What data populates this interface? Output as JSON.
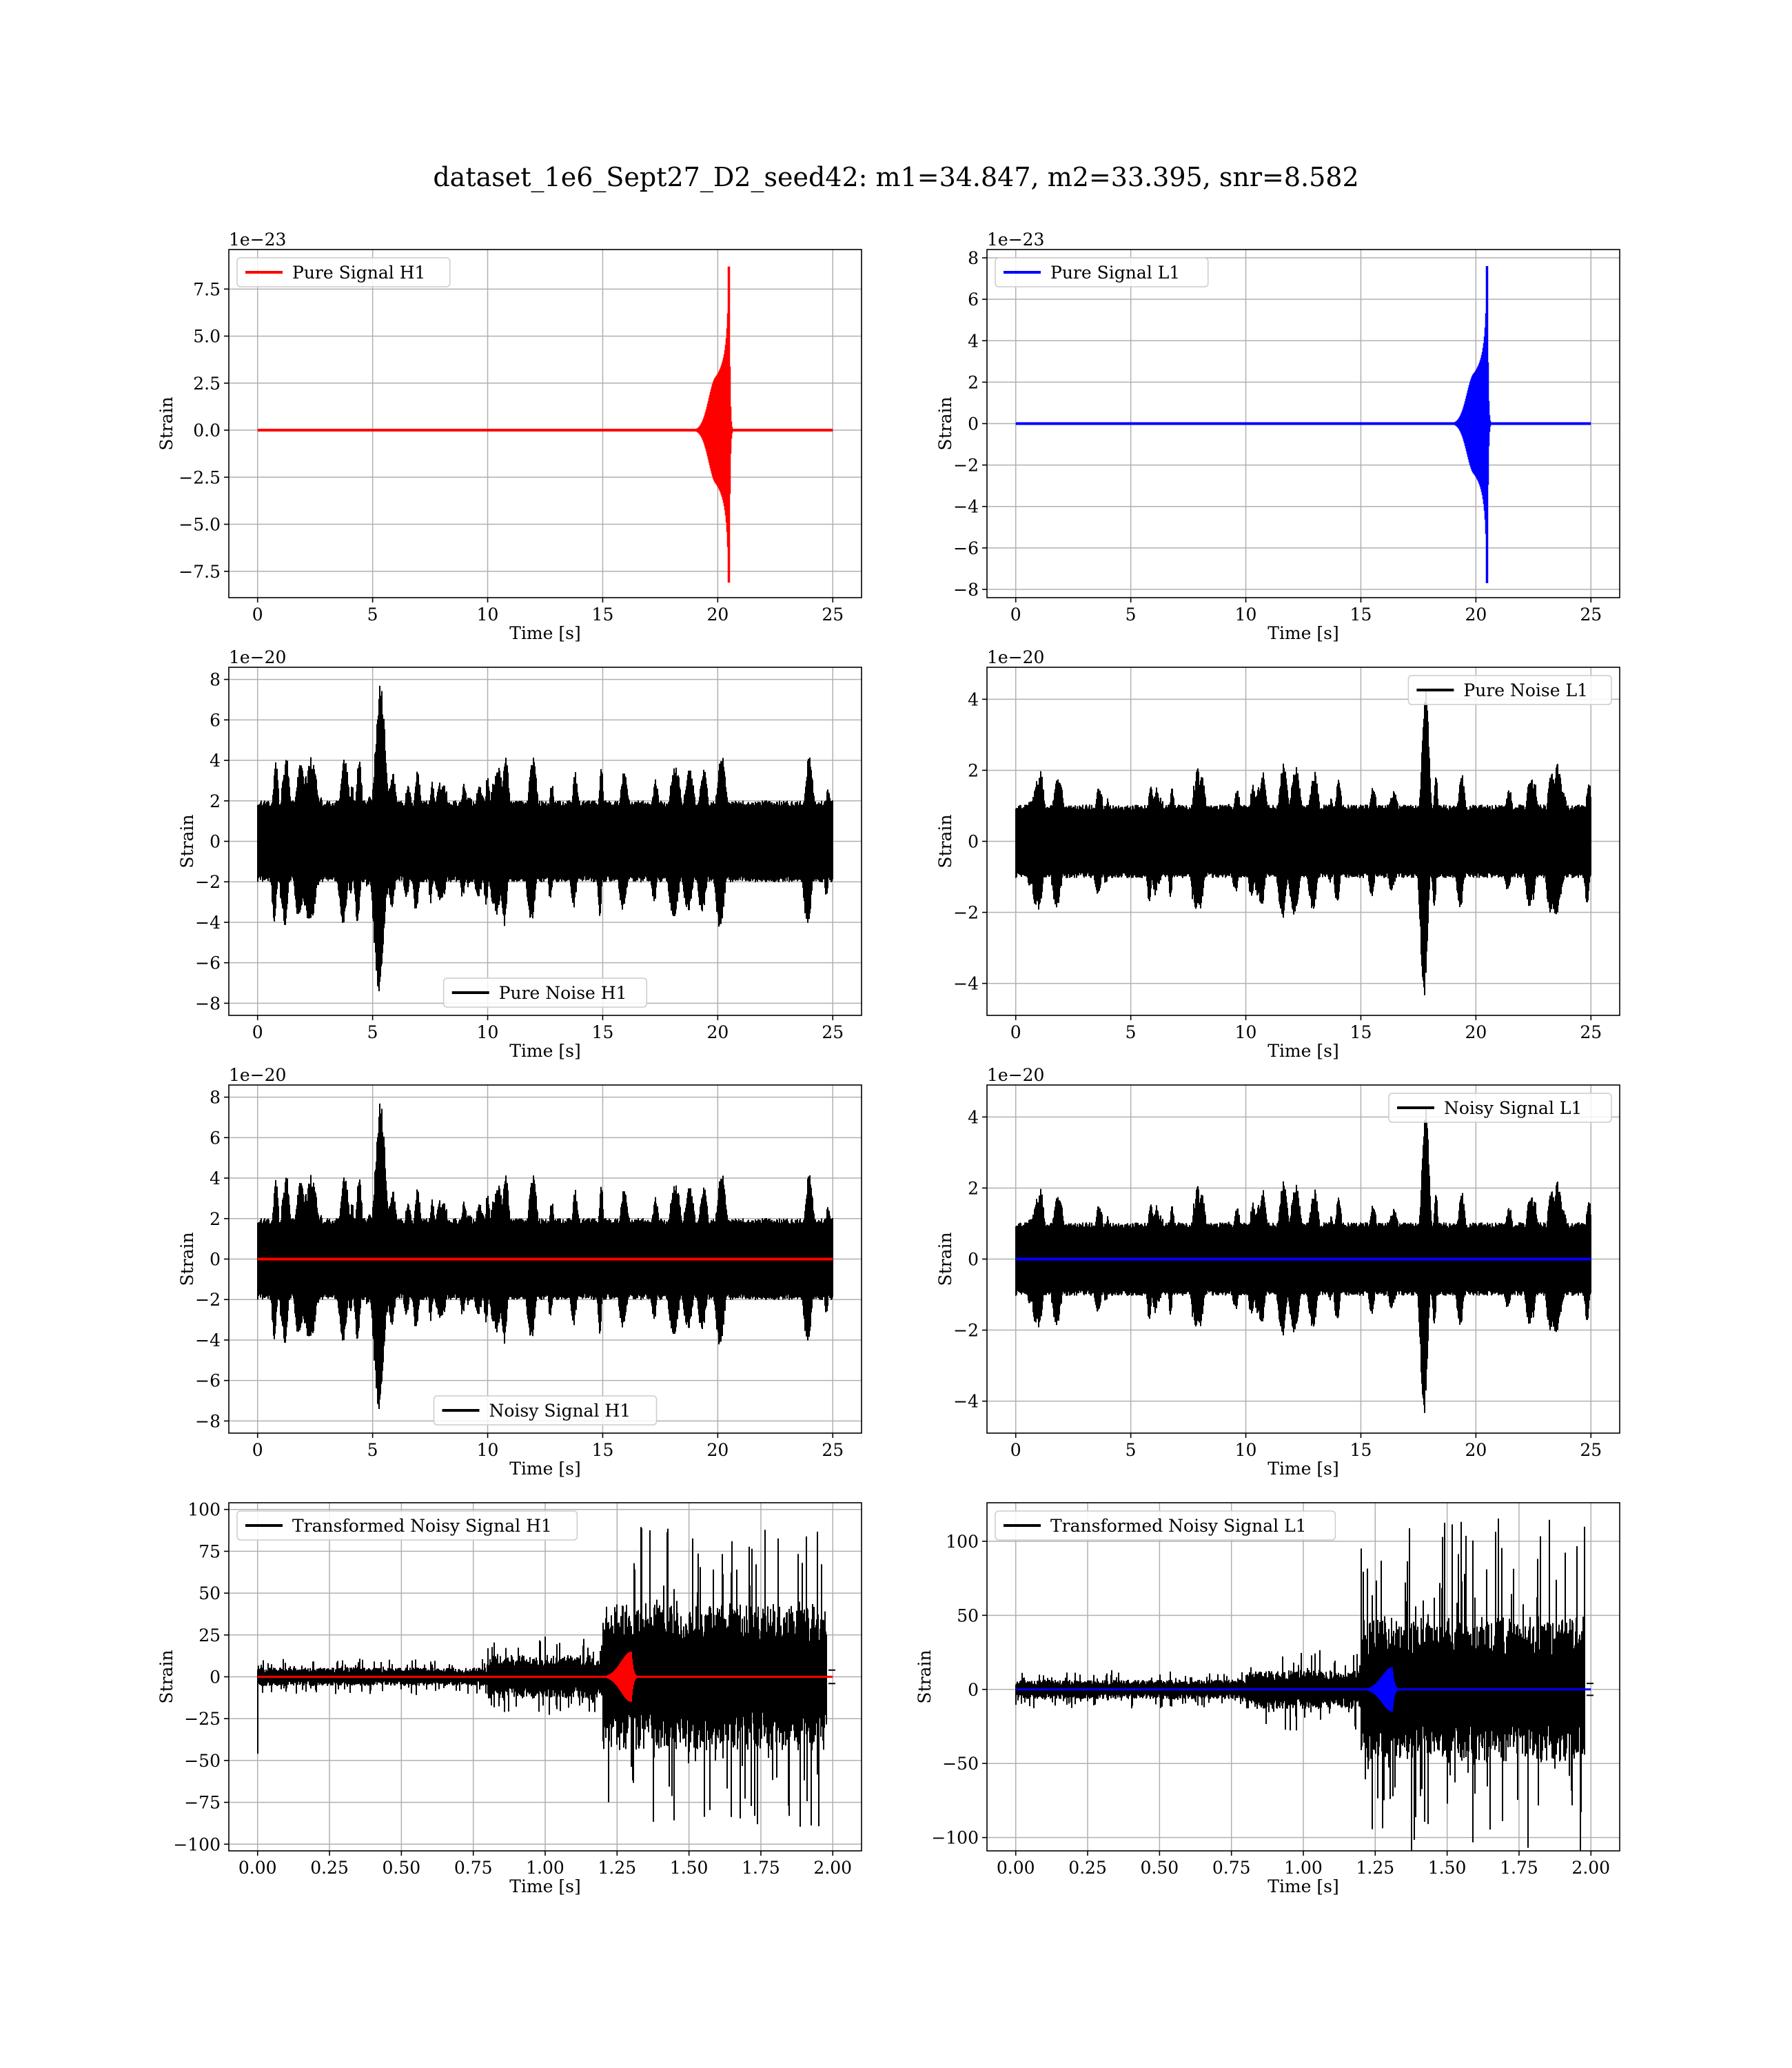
{
  "suptitle": "dataset_1e6_Sept27_D2_seed42: m1=34.847, m2=33.395, snr=8.582",
  "colors": {
    "h1_signal": "#ff0000",
    "l1_signal": "#0000ff",
    "noise": "#000000",
    "grid": "#b0b0b0"
  },
  "chart_data": [
    {
      "id": "pure-signal-h1",
      "type": "line",
      "kind": "chirp",
      "xlabel": "Time [s]",
      "ylabel": "Strain",
      "offset_text": "1e−23",
      "xlim": [
        -1.25,
        26.25
      ],
      "ylim": [
        -8.9,
        9.6
      ],
      "xticks": [
        0,
        5,
        10,
        15,
        20,
        25
      ],
      "xtick_labels": [
        "0",
        "5",
        "10",
        "15",
        "20",
        "25"
      ],
      "yticks": [
        -7.5,
        -5.0,
        -2.5,
        0.0,
        2.5,
        5.0,
        7.5
      ],
      "ytick_labels": [
        "−7.5",
        "−5.0",
        "−2.5",
        "0.0",
        "2.5",
        "5.0",
        "7.5"
      ],
      "legend": {
        "loc": "upper left",
        "entries": [
          {
            "label": "Pure Signal H1",
            "color": "#ff0000"
          }
        ]
      },
      "series": [
        {
          "name": "Pure Signal H1",
          "color": "#ff0000",
          "x_range": [
            0,
            25
          ],
          "merger_time": 20.5,
          "peak": [
            8.7,
            -8.1
          ],
          "plateau": [
            2.8,
            -2.8
          ]
        }
      ]
    },
    {
      "id": "pure-signal-l1",
      "type": "line",
      "kind": "chirp",
      "xlabel": "Time [s]",
      "ylabel": "Strain",
      "offset_text": "1e−23",
      "xlim": [
        -1.25,
        26.25
      ],
      "ylim": [
        -8.4,
        8.4
      ],
      "xticks": [
        0,
        5,
        10,
        15,
        20,
        25
      ],
      "xtick_labels": [
        "0",
        "5",
        "10",
        "15",
        "20",
        "25"
      ],
      "yticks": [
        -8,
        -6,
        -4,
        -2,
        0,
        2,
        4,
        6,
        8
      ],
      "ytick_labels": [
        "−8",
        "−6",
        "−4",
        "−2",
        "0",
        "2",
        "4",
        "6",
        "8"
      ],
      "legend": {
        "loc": "upper left",
        "entries": [
          {
            "label": "Pure Signal L1",
            "color": "#0000ff"
          }
        ]
      },
      "series": [
        {
          "name": "Pure Signal L1",
          "color": "#0000ff",
          "x_range": [
            0,
            25
          ],
          "merger_time": 20.5,
          "peak": [
            7.6,
            -7.7
          ],
          "plateau": [
            2.4,
            -2.4
          ]
        }
      ]
    },
    {
      "id": "pure-noise-h1",
      "type": "line",
      "kind": "noise",
      "xlabel": "Time [s]",
      "ylabel": "Strain",
      "offset_text": "1e−20",
      "xlim": [
        -1.25,
        26.25
      ],
      "ylim": [
        -8.6,
        8.6
      ],
      "xticks": [
        0,
        5,
        10,
        15,
        20,
        25
      ],
      "xtick_labels": [
        "0",
        "5",
        "10",
        "15",
        "20",
        "25"
      ],
      "yticks": [
        -8,
        -6,
        -4,
        -2,
        0,
        2,
        4,
        6,
        8
      ],
      "ytick_labels": [
        "−8",
        "−6",
        "−4",
        "−2",
        "0",
        "2",
        "4",
        "6",
        "8"
      ],
      "legend": {
        "loc": "lower center",
        "entries": [
          {
            "label": "Pure Noise H1",
            "color": "#000000"
          }
        ]
      },
      "series": [
        {
          "name": "Pure Noise H1",
          "color": "#000000",
          "x_range": [
            0,
            25
          ],
          "max_abs": 7.8,
          "typical_abs": 4.5,
          "seed": 11
        }
      ]
    },
    {
      "id": "pure-noise-l1",
      "type": "line",
      "kind": "noise",
      "xlabel": "Time [s]",
      "ylabel": "Strain",
      "offset_text": "1e−20",
      "xlim": [
        -1.25,
        26.25
      ],
      "ylim": [
        -4.9,
        4.9
      ],
      "xticks": [
        0,
        5,
        10,
        15,
        20,
        25
      ],
      "xtick_labels": [
        "0",
        "5",
        "10",
        "15",
        "20",
        "25"
      ],
      "yticks": [
        -4,
        -2,
        0,
        2,
        4
      ],
      "ytick_labels": [
        "−4",
        "−2",
        "0",
        "2",
        "4"
      ],
      "legend": {
        "loc": "upper right",
        "entries": [
          {
            "label": "Pure Noise L1",
            "color": "#000000"
          }
        ]
      },
      "series": [
        {
          "name": "Pure Noise L1",
          "color": "#000000",
          "x_range": [
            0,
            25
          ],
          "max_abs": 4.4,
          "typical_abs": 2.3,
          "seed": 23
        }
      ]
    },
    {
      "id": "noisy-signal-h1",
      "type": "line",
      "kind": "noise-with-signal",
      "xlabel": "Time [s]",
      "ylabel": "Strain",
      "offset_text": "1e−20",
      "xlim": [
        -1.25,
        26.25
      ],
      "ylim": [
        -8.6,
        8.6
      ],
      "xticks": [
        0,
        5,
        10,
        15,
        20,
        25
      ],
      "xtick_labels": [
        "0",
        "5",
        "10",
        "15",
        "20",
        "25"
      ],
      "yticks": [
        -8,
        -6,
        -4,
        -2,
        0,
        2,
        4,
        6,
        8
      ],
      "ytick_labels": [
        "−8",
        "−6",
        "−4",
        "−2",
        "0",
        "2",
        "4",
        "6",
        "8"
      ],
      "legend": {
        "loc": "lower center",
        "entries": [
          {
            "label": "Noisy Signal H1",
            "color": "#000000"
          }
        ]
      },
      "series": [
        {
          "name": "Noisy Signal H1",
          "color": "#000000",
          "x_range": [
            0,
            25
          ],
          "max_abs": 7.8,
          "typical_abs": 4.5,
          "seed": 11
        },
        {
          "color": "#ff0000",
          "x_range": [
            0,
            25
          ],
          "value": 0
        }
      ]
    },
    {
      "id": "noisy-signal-l1",
      "type": "line",
      "kind": "noise-with-signal",
      "xlabel": "Time [s]",
      "ylabel": "Strain",
      "offset_text": "1e−20",
      "xlim": [
        -1.25,
        26.25
      ],
      "ylim": [
        -4.9,
        4.9
      ],
      "xticks": [
        0,
        5,
        10,
        15,
        20,
        25
      ],
      "xtick_labels": [
        "0",
        "5",
        "10",
        "15",
        "20",
        "25"
      ],
      "yticks": [
        -4,
        -2,
        0,
        2,
        4
      ],
      "ytick_labels": [
        "−4",
        "−2",
        "0",
        "2",
        "4"
      ],
      "legend": {
        "loc": "upper right",
        "entries": [
          {
            "label": "Noisy Signal L1",
            "color": "#000000"
          }
        ]
      },
      "series": [
        {
          "name": "Noisy Signal L1",
          "color": "#000000",
          "x_range": [
            0,
            25
          ],
          "max_abs": 4.4,
          "typical_abs": 2.3,
          "seed": 23
        },
        {
          "color": "#0000ff",
          "x_range": [
            0,
            25
          ],
          "value": 0
        }
      ]
    },
    {
      "id": "transformed-noisy-signal-h1",
      "type": "line",
      "kind": "whitened",
      "xlabel": "Time [s]",
      "ylabel": "Strain",
      "offset_text": "",
      "xlim": [
        -0.1,
        2.1
      ],
      "ylim": [
        -104,
        104
      ],
      "xticks": [
        0,
        0.25,
        0.5,
        0.75,
        1.0,
        1.25,
        1.5,
        1.75,
        2.0
      ],
      "xtick_labels": [
        "0.00",
        "0.25",
        "0.50",
        "0.75",
        "1.00",
        "1.25",
        "1.50",
        "1.75",
        "2.00"
      ],
      "yticks": [
        -100,
        -75,
        -50,
        -25,
        0,
        25,
        50,
        75,
        100
      ],
      "ytick_labels": [
        "−100",
        "−75",
        "−50",
        "−25",
        "0",
        "25",
        "50",
        "75",
        "100"
      ],
      "legend": {
        "loc": "upper left",
        "entries": [
          {
            "label": "Transformed Noisy Signal H1",
            "color": "#000000"
          }
        ]
      },
      "series": [
        {
          "name": "Transformed Noisy Signal H1",
          "color": "#000000",
          "x_range": [
            0,
            2
          ],
          "segments": [
            [
              0.0,
              0.8,
              5,
              11
            ],
            [
              0.8,
              1.2,
              12,
              25
            ],
            [
              1.2,
              1.98,
              40,
              90
            ]
          ],
          "start_spike": -46,
          "seed": 37
        },
        {
          "color": "#ff0000",
          "x_range": [
            0,
            2
          ],
          "merger_time": 1.3,
          "peak": 15
        }
      ]
    },
    {
      "id": "transformed-noisy-signal-l1",
      "type": "line",
      "kind": "whitened",
      "xlabel": "Time [s]",
      "ylabel": "Strain",
      "offset_text": "",
      "xlim": [
        -0.1,
        2.1
      ],
      "ylim": [
        -109,
        126
      ],
      "xticks": [
        0,
        0.25,
        0.5,
        0.75,
        1.0,
        1.25,
        1.5,
        1.75,
        2.0
      ],
      "xtick_labels": [
        "0.00",
        "0.25",
        "0.50",
        "0.75",
        "1.00",
        "1.25",
        "1.50",
        "1.75",
        "2.00"
      ],
      "yticks": [
        -100,
        -50,
        0,
        50,
        100
      ],
      "ytick_labels": [
        "−100",
        "−50",
        "0",
        "50",
        "100"
      ],
      "legend": {
        "loc": "upper left",
        "entries": [
          {
            "label": "Transformed Noisy Signal L1",
            "color": "#000000"
          }
        ]
      },
      "series": [
        {
          "name": "Transformed Noisy Signal L1",
          "color": "#000000",
          "x_range": [
            0,
            2
          ],
          "segments": [
            [
              0.0,
              0.8,
              6,
              13
            ],
            [
              0.8,
              1.2,
              12,
              28
            ],
            [
              1.2,
              1.98,
              45,
              116
            ]
          ],
          "start_spike": 0,
          "seed": 53
        },
        {
          "color": "#0000ff",
          "x_range": [
            0,
            2
          ],
          "merger_time": 1.31,
          "peak": 15
        }
      ]
    }
  ]
}
